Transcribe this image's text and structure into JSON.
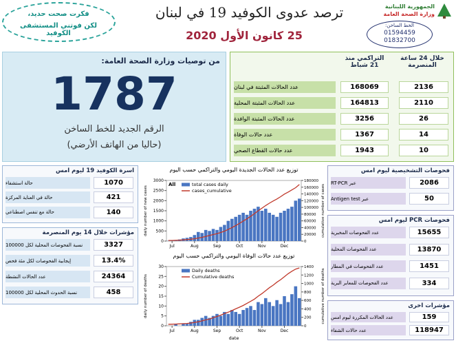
{
  "header": {
    "ministry": [
      "الجمهورية اللبنانية",
      "وزارة الصحة العامة"
    ],
    "hotline_label": "الخط الساخن:",
    "hotline_numbers": [
      "01594459",
      "01832700"
    ],
    "title": "ترصد عدوى الكوفيد 19 في لبنان",
    "date": "25 كانون الأول 2020",
    "slogan": [
      "فكرت صحت حديد،",
      "لكن فوتني المستشفى الكوفيد"
    ]
  },
  "hotline_box": {
    "heading": "من توصيات وزارة الصحة العامة:",
    "number": 1787,
    "caption": "الرقم الجديد للخط الساخن",
    "note": "(حاليا من الهاتف الأرضي)"
  },
  "summary": {
    "headers": [
      "خلال 24 ساعة المنصرمة",
      "التراكمي منذ 21 شباط"
    ],
    "rows": [
      {
        "label": "عدد الحالات المثبتة في لبنان",
        "day": 2136,
        "total": 168069
      },
      {
        "label": "عدد الحالات المثبتة المحلية",
        "day": 2110,
        "total": 164813
      },
      {
        "label": "عدد الحالات المثبتة الوافدة",
        "day": 26,
        "total": 3256
      },
      {
        "label": "عدد حالات الوفاة",
        "day": 14,
        "total": 1367
      },
      {
        "label": "عدد حالات القطاع الصحي",
        "day": 10,
        "total": 1943
      }
    ]
  },
  "beds": {
    "title": "اسرة الكوفيد 19 ليوم امس",
    "rows": [
      {
        "label": "حالة استشفاء",
        "value": 1070
      },
      {
        "label": "حالة في العناية المركزة",
        "value": 421
      },
      {
        "label": "حالة مع تنفس اصطناعي",
        "value": 140
      }
    ]
  },
  "indicators": {
    "title": "مؤشرات خلال 14 يوم المنصرمة",
    "rows": [
      {
        "label": "نسبة الفحوصات المحلية لكل 100000",
        "value": 3327
      },
      {
        "label": "إيجابية الفحوصات لكل مئة فحص",
        "value": "13.4%"
      },
      {
        "label": "عدد الحالات النشطة",
        "value": 24364
      },
      {
        "label": "نسبة الحدوث المحلية لكل 100000",
        "value": 458
      }
    ]
  },
  "diagnostics": {
    "title": "فحوصات التشخيصية ليوم امس",
    "rows": [
      {
        "label": "عبر RT-PCR",
        "value": 2086
      },
      {
        "label": "عبر Antigen test",
        "value": 50
      }
    ]
  },
  "pcr": {
    "title": "فحوصات PCR ليوم امس",
    "rows": [
      {
        "label": "عدد الفحوصات المخبرية",
        "value": 15655
      },
      {
        "label": "عدد الفحوصات المحلية",
        "value": 13870
      },
      {
        "label": "عدد الفحوصات في المطار",
        "value": 1451
      },
      {
        "label": "عدد الفحوصات للمعابر البرية",
        "value": 334
      }
    ]
  },
  "other": {
    "title": "مؤشرات اخرى",
    "rows": [
      {
        "label": "عدد الحالات المكررة ليوم امس",
        "value": 159
      },
      {
        "label": "عدد حالات الشفاء",
        "value": 118947
      }
    ]
  },
  "chart_data": [
    {
      "type": "bar",
      "title": "توزيع عدد الحالات الجديدة اليومي والتراكمي حسب اليوم",
      "annotation": "All",
      "y_label": "daily number of new cases",
      "y2_label": "cumulative number of cases",
      "categories": [
        null,
        "Jul",
        null,
        null,
        null,
        null,
        null,
        "Aug",
        null,
        null,
        null,
        null,
        null,
        "Sep",
        null,
        null,
        null,
        null,
        null,
        "Oct",
        null,
        null,
        null,
        null,
        null,
        "Nov",
        null,
        null,
        null,
        null,
        null,
        "Dec",
        null,
        null,
        null,
        null
      ],
      "series": [
        {
          "name": "total cases daily",
          "color": "#4a76c2",
          "values": [
            10,
            20,
            50,
            80,
            130,
            160,
            200,
            300,
            450,
            400,
            550,
            500,
            600,
            550,
            700,
            800,
            1000,
            1100,
            1200,
            1300,
            1400,
            1300,
            1500,
            1600,
            1700,
            1500,
            1600,
            1400,
            1300,
            1200,
            1400,
            1500,
            1600,
            1700,
            2000,
            2100
          ]
        },
        {
          "name": "cases_cumulative",
          "color": "#c0392b",
          "axis": "y2",
          "values": [
            1800,
            1900,
            2200,
            2700,
            3500,
            4500,
            5500,
            7000,
            9000,
            11000,
            14000,
            16500,
            19500,
            22000,
            25500,
            29500,
            34500,
            40000,
            46000,
            52500,
            59500,
            66000,
            73500,
            81500,
            90000,
            97500,
            105500,
            112500,
            119000,
            125000,
            132000,
            139500,
            145500,
            152000,
            158500,
            168000
          ]
        }
      ],
      "ylim": [
        0,
        3000
      ],
      "yticks": [
        0,
        500,
        1000,
        1500,
        2000,
        2500,
        3000
      ],
      "y2lim": [
        0,
        180000
      ],
      "y2ticks": [
        0,
        20000,
        40000,
        60000,
        80000,
        100000,
        120000,
        140000,
        160000,
        180000
      ],
      "legend": "upper left"
    },
    {
      "type": "bar",
      "title": "توزيع عدد حالات الوفاة اليومي والتراكمي حسب اليوم",
      "y_label": "daily number of deaths",
      "y2_label": "cumulative number of deaths",
      "x_label": "date",
      "categories": [
        null,
        "Jul",
        null,
        null,
        null,
        null,
        null,
        "Aug",
        null,
        null,
        null,
        null,
        null,
        "Sep",
        null,
        null,
        null,
        null,
        null,
        "Oct",
        null,
        null,
        null,
        null,
        null,
        "Nov",
        null,
        null,
        null,
        null,
        null,
        "Dec",
        null,
        null,
        null,
        null
      ],
      "series": [
        {
          "name": "Daily deaths",
          "color": "#4a76c2",
          "values": [
            0,
            0,
            1,
            0,
            1,
            1,
            2,
            3,
            3,
            4,
            5,
            4,
            5,
            6,
            5,
            7,
            6,
            8,
            7,
            6,
            8,
            9,
            10,
            8,
            12,
            11,
            14,
            12,
            10,
            13,
            11,
            15,
            12,
            16,
            20,
            14
          ]
        },
        {
          "name": "Cumulative deaths",
          "color": "#c0392b",
          "axis": "y2",
          "values": [
            35,
            37,
            40,
            45,
            50,
            55,
            65,
            80,
            95,
            115,
            140,
            160,
            190,
            220,
            250,
            290,
            320,
            360,
            400,
            440,
            480,
            530,
            580,
            630,
            700,
            760,
            830,
            900,
            960,
            1030,
            1090,
            1160,
            1230,
            1290,
            1340,
            1367
          ]
        }
      ],
      "ylim": [
        0,
        30
      ],
      "yticks": [
        0,
        5,
        10,
        15,
        20,
        25,
        30
      ],
      "y2lim": [
        0,
        1400
      ],
      "y2ticks": [
        0,
        200,
        400,
        600,
        800,
        1000,
        1200,
        1400
      ],
      "legend": "upper left"
    }
  ]
}
